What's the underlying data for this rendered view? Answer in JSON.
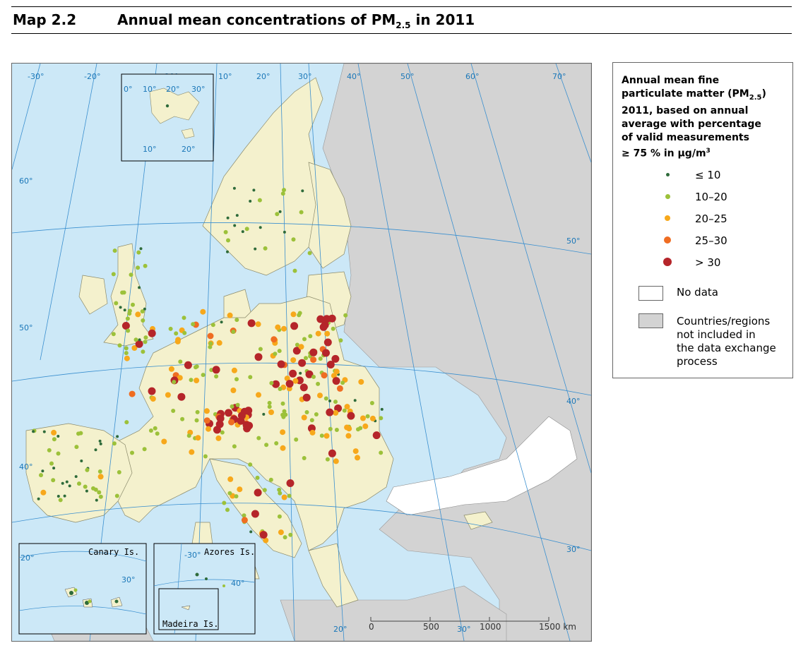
{
  "header": {
    "map_number": "Map 2.2",
    "title_prefix": "Annual mean concentrations of PM",
    "title_sub": "2.5",
    "title_suffix": " in 2011"
  },
  "legend": {
    "title_line1": "Annual mean fine",
    "title_line2a": "particulate  matter (PM",
    "title_line2sub": "2.5",
    "title_line2b": ")",
    "title_line3": "2011,  based on annual",
    "title_line4": "average  with percentage",
    "title_line5": "of valid  measurements",
    "title_line6a": "≥ 75 %  in µg/m",
    "title_line6sup": "3",
    "classes": [
      {
        "label": "≤ 10",
        "color": "#2e6b3a"
      },
      {
        "label": "10–20",
        "color": "#9cc13a"
      },
      {
        "label": "20–25",
        "color": "#f7a81b"
      },
      {
        "label": "25–30",
        "color": "#ef6d22"
      },
      {
        "label": "> 30",
        "color": "#b5252a"
      }
    ],
    "no_data": "No data",
    "not_included": [
      "Countries/regions",
      "not included in",
      "the data exchange",
      "process"
    ]
  },
  "colors": {
    "sea": "#cce8f7",
    "land_included": "#f4f1cd",
    "land_excluded": "#d3d3d3",
    "no_data": "#ffffff",
    "graticule": "#3a8fcf"
  },
  "graticule": {
    "top_labels": [
      "-30°",
      "-20°",
      "-10°",
      "10°",
      "20°",
      "30°",
      "40°",
      "50°",
      "60°",
      "70°"
    ],
    "left_labels": [
      "60°",
      "50°",
      "40°"
    ],
    "right_labels": [
      "50°",
      "40°",
      "30°"
    ],
    "bottom_labels": [
      "20°",
      "30°"
    ]
  },
  "insets": {
    "svalbard": {
      "labels": [
        "0°",
        "10°",
        "20°",
        "30°",
        "10°",
        "20°"
      ]
    },
    "canary": {
      "name": "Canary Is.",
      "labels": [
        "20°",
        "30°"
      ]
    },
    "azores": {
      "name": "Azores Is.",
      "labels": [
        "-30°",
        "40°"
      ]
    },
    "madeira": {
      "name": "Madeira Is."
    }
  },
  "scale_bar": {
    "labels": [
      "0",
      "500",
      "1000",
      "1500 km"
    ]
  }
}
